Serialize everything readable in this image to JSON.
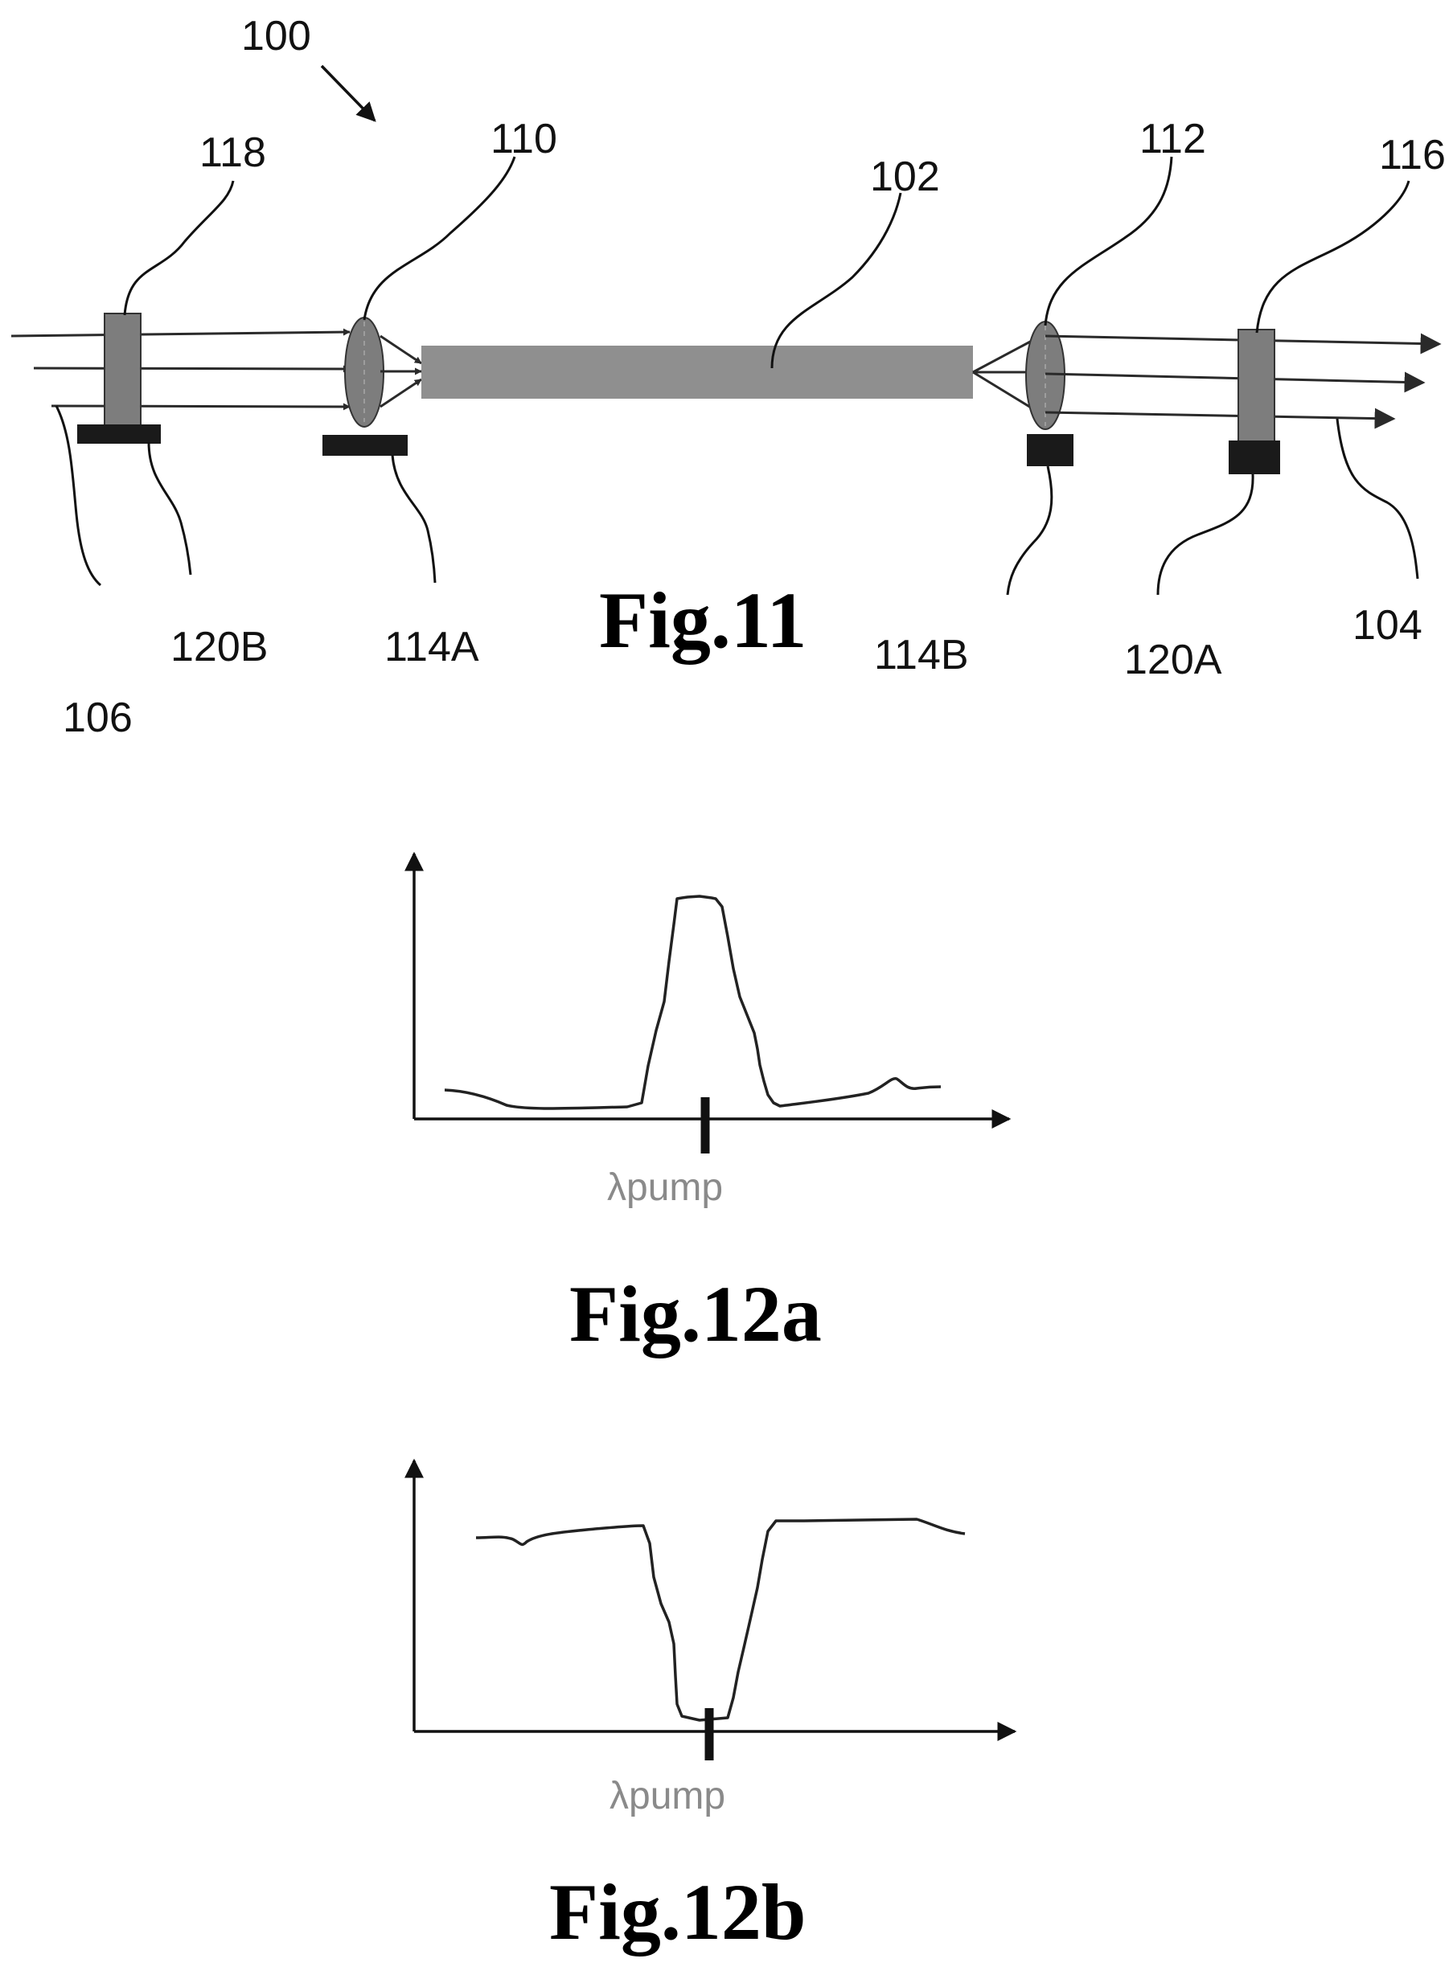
{
  "labels": {
    "r100": "100",
    "r118": "118",
    "r110": "110",
    "r102": "102",
    "r112": "112",
    "r116": "116",
    "r120B": "120B",
    "r114A": "114A",
    "r106": "106",
    "r114B": "114B",
    "r120A": "120A",
    "r104": "104"
  },
  "captions": {
    "fig11": "Fig.11",
    "fig12a": "Fig.12a",
    "fig12b": "Fig.12b"
  },
  "axes": {
    "fig12a_xlabel": "λpump",
    "fig12b_xlabel": "λpump"
  },
  "colors": {
    "component_fill": "#7d7d7d",
    "fiber_fill": "#8f8f8f",
    "mount_fill": "#1a1a1a",
    "axis_label_color": "#8a8a8a"
  }
}
